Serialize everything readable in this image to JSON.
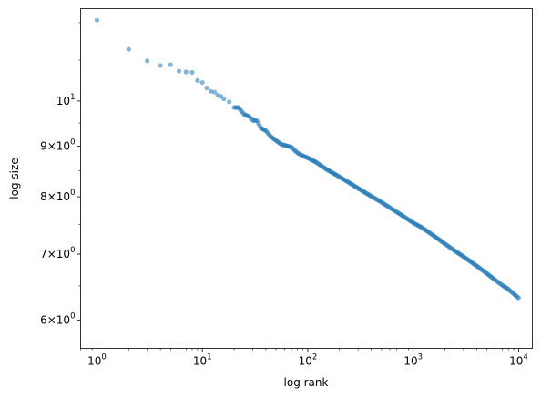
{
  "chart_data": {
    "type": "scatter",
    "title": "",
    "xlabel": "log rank",
    "ylabel": "log size",
    "xscale": "log",
    "yscale": "log",
    "xlim": [
      0.7,
      13500
    ],
    "ylim": [
      5.62,
      12.4
    ],
    "grid": false,
    "marker_color": "#1f77b4",
    "marker_alpha": 0.55,
    "x_ticks": [
      {
        "value": 1,
        "base": "10",
        "exp": "0"
      },
      {
        "value": 10,
        "base": "10",
        "exp": "1"
      },
      {
        "value": 100,
        "base": "10",
        "exp": "2"
      },
      {
        "value": 1000,
        "base": "10",
        "exp": "3"
      },
      {
        "value": 10000,
        "base": "10",
        "exp": "4"
      }
    ],
    "y_ticks": [
      {
        "value": 6,
        "text": "6×10",
        "exp": "0"
      },
      {
        "value": 7,
        "text": "7×10",
        "exp": "0"
      },
      {
        "value": 8,
        "text": "8×10",
        "exp": "0"
      },
      {
        "value": 9,
        "text": "9×10",
        "exp": "0"
      },
      {
        "value": 10,
        "text": "10",
        "exp": "1"
      }
    ],
    "points": [
      [
        1,
        12.07
      ],
      [
        2,
        11.28
      ],
      [
        3,
        10.98
      ],
      [
        4,
        10.86
      ],
      [
        5,
        10.88
      ],
      [
        6,
        10.72
      ],
      [
        7,
        10.7
      ],
      [
        8,
        10.69
      ],
      [
        9,
        10.49
      ],
      [
        10,
        10.44
      ],
      [
        11,
        10.31
      ],
      [
        12,
        10.23
      ],
      [
        13,
        10.21
      ],
      [
        14,
        10.14
      ],
      [
        15,
        10.11
      ],
      [
        16,
        10.05
      ],
      [
        18,
        9.98
      ],
      [
        20,
        9.85
      ],
      [
        22,
        9.85
      ],
      [
        25,
        9.69
      ],
      [
        28,
        9.64
      ],
      [
        30,
        9.56
      ],
      [
        33,
        9.55
      ],
      [
        36,
        9.39
      ],
      [
        40,
        9.33
      ],
      [
        45,
        9.2
      ],
      [
        50,
        9.12
      ],
      [
        56,
        9.04
      ],
      [
        63,
        9.01
      ],
      [
        70,
        8.98
      ],
      [
        80,
        8.86
      ],
      [
        90,
        8.8
      ],
      [
        100,
        8.76
      ],
      [
        120,
        8.67
      ],
      [
        150,
        8.53
      ],
      [
        200,
        8.38
      ],
      [
        250,
        8.26
      ],
      [
        300,
        8.16
      ],
      [
        400,
        8.01
      ],
      [
        500,
        7.9
      ],
      [
        600,
        7.8
      ],
      [
        700,
        7.72
      ],
      [
        800,
        7.65
      ],
      [
        1000,
        7.53
      ],
      [
        1200,
        7.45
      ],
      [
        1500,
        7.33
      ],
      [
        2000,
        7.17
      ],
      [
        2500,
        7.05
      ],
      [
        3000,
        6.96
      ],
      [
        4000,
        6.81
      ],
      [
        5000,
        6.69
      ],
      [
        6000,
        6.59
      ],
      [
        7000,
        6.51
      ],
      [
        8000,
        6.45
      ],
      [
        9000,
        6.38
      ],
      [
        10000,
        6.32
      ]
    ]
  }
}
